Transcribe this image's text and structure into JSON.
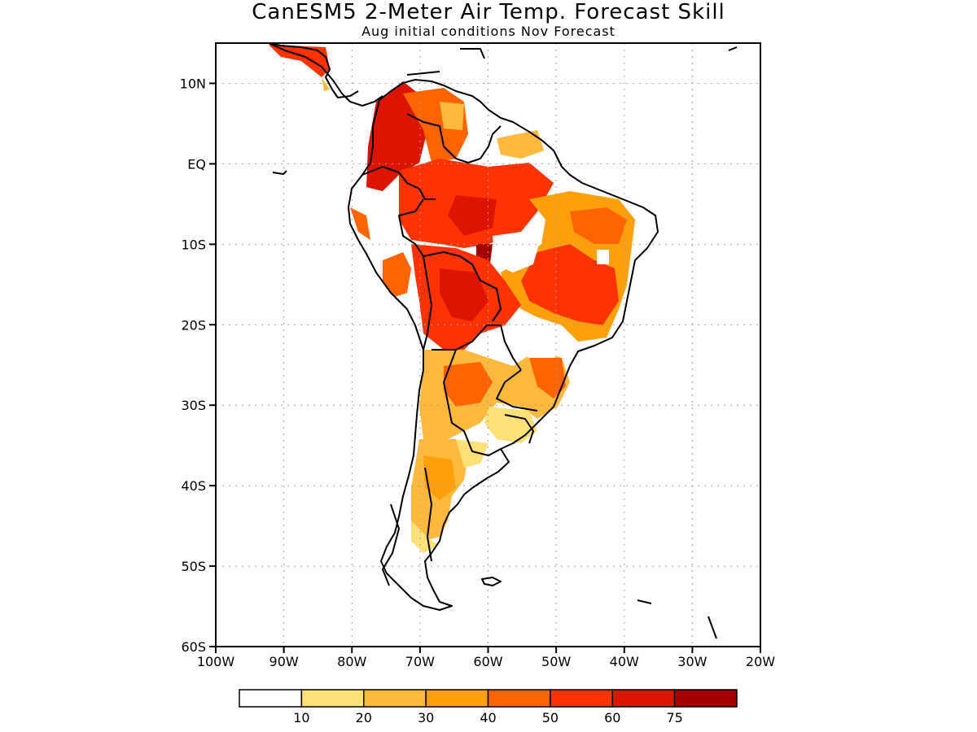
{
  "title": "CanESM5 2-Meter Air Temp. Forecast Skill",
  "subtitle": "Aug initial conditions  Nov Forecast",
  "map": {
    "lon_range": [
      -100,
      -20
    ],
    "lat_range": [
      -60,
      15
    ],
    "grid": true,
    "lat_ticks": [
      {
        "value": 10,
        "label": "10N"
      },
      {
        "value": 0,
        "label": "EQ"
      },
      {
        "value": -10,
        "label": "10S"
      },
      {
        "value": -20,
        "label": "20S"
      },
      {
        "value": -30,
        "label": "30S"
      },
      {
        "value": -40,
        "label": "40S"
      },
      {
        "value": -50,
        "label": "50S"
      },
      {
        "value": -60,
        "label": "60S"
      }
    ],
    "lon_ticks": [
      {
        "value": -100,
        "label": "100W"
      },
      {
        "value": -90,
        "label": "90W"
      },
      {
        "value": -80,
        "label": "80W"
      },
      {
        "value": -70,
        "label": "70W"
      },
      {
        "value": -60,
        "label": "60W"
      },
      {
        "value": -50,
        "label": "50W"
      },
      {
        "value": -40,
        "label": "40W"
      },
      {
        "value": -30,
        "label": "30W"
      },
      {
        "value": -20,
        "label": "20W"
      }
    ]
  },
  "colorbar": {
    "colors": [
      "#ffffff",
      "#ffe178",
      "#ffb93c",
      "#ffa00a",
      "#ff6400",
      "#ff3200",
      "#dc1400",
      "#a50000"
    ],
    "labels": [
      "10",
      "20",
      "30",
      "40",
      "50",
      "60",
      "75"
    ]
  }
}
